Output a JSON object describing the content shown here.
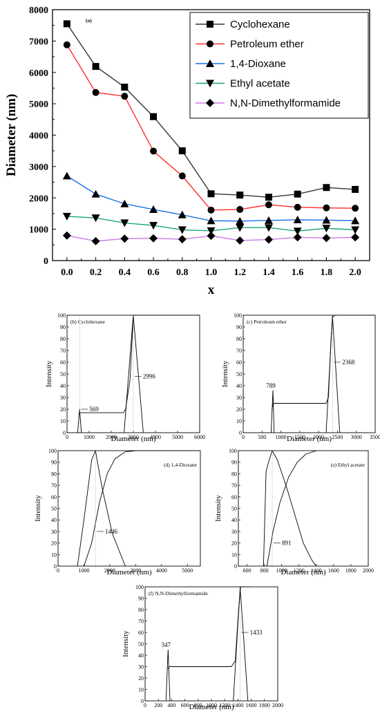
{
  "chart_data": [
    {
      "type": "line",
      "panel_label": "(a)",
      "xlabel": "x",
      "ylabel": "Diameter (nm)",
      "xlim": [
        -0.1,
        2.1
      ],
      "ylim": [
        0,
        8000
      ],
      "x_ticks": [
        "0.0",
        "0.2",
        "0.4",
        "0.6",
        "0.8",
        "1.0",
        "1.2",
        "1.4",
        "1.6",
        "1.8",
        "2.0"
      ],
      "y_ticks": [
        "0",
        "1000",
        "2000",
        "3000",
        "4000",
        "5000",
        "6000",
        "7000",
        "8000"
      ],
      "legend_position": "top-right",
      "x": [
        0.0,
        0.2,
        0.4,
        0.6,
        0.8,
        1.0,
        1.2,
        1.4,
        1.6,
        1.8,
        2.0
      ],
      "series": [
        {
          "name": "Cyclohexane",
          "color": "#333333",
          "marker": "square",
          "values": [
            7550,
            6190,
            5530,
            4590,
            3500,
            2130,
            2090,
            2020,
            2120,
            2330,
            2270
          ]
        },
        {
          "name": "Petroleum ether",
          "color": "#ff2a2a",
          "marker": "circle",
          "values": [
            6880,
            5360,
            5240,
            3490,
            2700,
            1610,
            1630,
            1780,
            1700,
            1680,
            1670
          ]
        },
        {
          "name": "1,4-Dioxane",
          "color": "#1a72e8",
          "marker": "triangle-up",
          "values": [
            2700,
            2120,
            1810,
            1630,
            1460,
            1270,
            1260,
            1280,
            1300,
            1290,
            1270
          ]
        },
        {
          "name": "Ethyl acetate",
          "color": "#1aa86a",
          "marker": "triangle-down",
          "values": [
            1410,
            1360,
            1200,
            1120,
            980,
            950,
            1050,
            1050,
            940,
            1030,
            980
          ]
        },
        {
          "name": "N,N-Dimethylformamide",
          "color": "#cc77e8",
          "marker": "diamond",
          "values": [
            800,
            620,
            700,
            710,
            680,
            790,
            640,
            670,
            740,
            720,
            740
          ]
        }
      ]
    },
    {
      "type": "line",
      "panel_label": "(b)",
      "title": "Cyclohexane",
      "xlabel": "Diameter (nm)",
      "ylabel": "Intensity",
      "xlim": [
        0,
        6000
      ],
      "ylim": [
        0,
        100
      ],
      "x_ticks": [
        "0",
        "1000",
        "2000",
        "3000",
        "4000",
        "5000",
        "6000"
      ],
      "y_ticks": [
        "0",
        "10",
        "20",
        "30",
        "40",
        "50",
        "60",
        "70",
        "80",
        "90",
        "100"
      ],
      "annotations": [
        {
          "text": "569",
          "x": 569,
          "y": 20
        },
        {
          "text": "2996",
          "x": 2996,
          "y": 48
        }
      ],
      "series": [
        {
          "values_xy": [
            [
              400,
              0
            ],
            [
              480,
              0
            ],
            [
              569,
              20
            ],
            [
              650,
              0
            ]
          ]
        },
        {
          "values_xy": [
            [
              520,
              16
            ],
            [
              600,
              17
            ],
            [
              2550,
              17
            ],
            [
              2650,
              20
            ],
            [
              2850,
              45
            ],
            [
              3000,
              100
            ],
            [
              6000,
              100
            ]
          ]
        },
        {
          "values_xy": [
            [
              2580,
              0
            ],
            [
              2996,
              100
            ],
            [
              3450,
              0
            ]
          ]
        }
      ]
    },
    {
      "type": "line",
      "panel_label": "(c)",
      "title": "Petroleum ether",
      "xlabel": "Diameter (nm)",
      "ylabel": "Intensity",
      "xlim": [
        0,
        3500
      ],
      "ylim": [
        0,
        100
      ],
      "x_ticks": [
        "0",
        "500",
        "1000",
        "1500",
        "2000",
        "2500",
        "3000",
        "3500"
      ],
      "y_ticks": [
        "0",
        "10",
        "20",
        "30",
        "40",
        "50",
        "60",
        "70",
        "80",
        "90",
        "100"
      ],
      "annotations": [
        {
          "text": "789",
          "x": 789,
          "y": 37
        },
        {
          "text": "2368",
          "x": 2368,
          "y": 60
        }
      ],
      "series": [
        {
          "values_xy": [
            [
              740,
              0
            ],
            [
              789,
              36
            ],
            [
              820,
              0
            ]
          ]
        },
        {
          "values_xy": [
            [
              760,
              20
            ],
            [
              800,
              25
            ],
            [
              2200,
              25
            ],
            [
              2260,
              30
            ],
            [
              2330,
              80
            ],
            [
              2370,
              98
            ],
            [
              2430,
              100
            ],
            [
              3500,
              100
            ]
          ]
        },
        {
          "values_xy": [
            [
              2200,
              0
            ],
            [
              2368,
              100
            ],
            [
              2560,
              0
            ]
          ]
        }
      ]
    },
    {
      "type": "line",
      "panel_label": "(d)",
      "title": "1,4-Dioxane",
      "xlabel": "Diameter (nm)",
      "ylabel": "Intensity",
      "xlim": [
        0,
        5500
      ],
      "ylim": [
        0,
        100
      ],
      "x_ticks": [
        "0",
        "1000",
        "2000",
        "3000",
        "4000",
        "5000"
      ],
      "y_ticks": [
        "0",
        "10",
        "20",
        "30",
        "40",
        "50",
        "60",
        "70",
        "80",
        "90",
        "100"
      ],
      "annotations": [
        {
          "text": "1446",
          "x": 1446,
          "y": 30
        }
      ],
      "series": [
        {
          "values_xy": [
            [
              750,
              0
            ],
            [
              1000,
              40
            ],
            [
              1300,
              92
            ],
            [
              1446,
              100
            ],
            [
              1700,
              68
            ],
            [
              2100,
              28
            ],
            [
              2600,
              0
            ]
          ]
        },
        {
          "values_xy": [
            [
              1000,
              0
            ],
            [
              1300,
              20
            ],
            [
              1600,
              55
            ],
            [
              1900,
              80
            ],
            [
              2200,
              93
            ],
            [
              2600,
              99
            ],
            [
              3000,
              100
            ],
            [
              5500,
              100
            ]
          ]
        }
      ]
    },
    {
      "type": "line",
      "panel_label": "(e)",
      "title": "Ethyl acetate",
      "xlabel": "Diameter (nm)",
      "ylabel": "Intensity",
      "xlim": [
        500,
        2000
      ],
      "ylim": [
        0,
        100
      ],
      "x_ticks": [
        "600",
        "800",
        "1000",
        "1200",
        "1400",
        "1600",
        "1800",
        "2000"
      ],
      "y_ticks": [
        "0",
        "10",
        "20",
        "30",
        "40",
        "50",
        "60",
        "70",
        "80",
        "90",
        "100"
      ],
      "annotations": [
        {
          "text": "891",
          "x": 891,
          "y": 20
        }
      ],
      "series": [
        {
          "values_xy": [
            [
              790,
              0
            ],
            [
              820,
              82
            ],
            [
              860,
              93
            ],
            [
              891,
              100
            ],
            [
              950,
              92
            ],
            [
              1050,
              70
            ],
            [
              1150,
              45
            ],
            [
              1250,
              20
            ],
            [
              1350,
              5
            ],
            [
              1400,
              0
            ]
          ]
        },
        {
          "values_xy": [
            [
              830,
              0
            ],
            [
              900,
              30
            ],
            [
              980,
              55
            ],
            [
              1080,
              77
            ],
            [
              1180,
              90
            ],
            [
              1280,
              97
            ],
            [
              1400,
              100
            ]
          ]
        }
      ]
    },
    {
      "type": "line",
      "panel_label": "(f)",
      "title": "N,N-Dimethylformamide",
      "xlabel": "Diameter (nm)",
      "ylabel": "Intensity",
      "xlim": [
        0,
        2000
      ],
      "ylim": [
        0,
        100
      ],
      "x_ticks": [
        "0",
        "200",
        "400",
        "600",
        "800",
        "1000",
        "1200",
        "1400",
        "1600",
        "1800",
        "2000"
      ],
      "y_ticks": [
        "0",
        "10",
        "20",
        "30",
        "40",
        "50",
        "60",
        "70",
        "80",
        "90",
        "100"
      ],
      "annotations": [
        {
          "text": "347",
          "x": 347,
          "y": 46
        },
        {
          "text": "1433",
          "x": 1433,
          "y": 60
        }
      ],
      "series": [
        {
          "values_xy": [
            [
              315,
              0
            ],
            [
              347,
              45
            ],
            [
              375,
              0
            ]
          ]
        },
        {
          "values_xy": [
            [
              345,
              28
            ],
            [
              360,
              30
            ],
            [
              1300,
              30
            ],
            [
              1360,
              35
            ],
            [
              1410,
              80
            ],
            [
              1440,
              100
            ],
            [
              1600,
              100
            ]
          ]
        },
        {
          "values_xy": [
            [
              1330,
              0
            ],
            [
              1433,
              100
            ],
            [
              1550,
              0
            ]
          ]
        }
      ]
    }
  ]
}
